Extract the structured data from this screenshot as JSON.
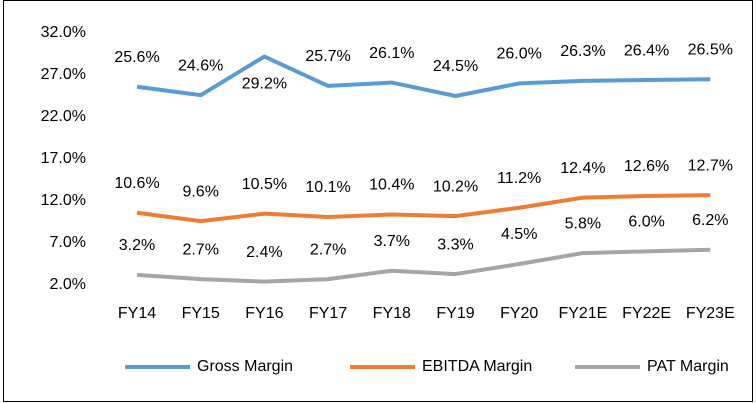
{
  "chart_data": {
    "type": "line",
    "categories": [
      "FY14",
      "FY15",
      "FY16",
      "FY17",
      "FY18",
      "FY19",
      "FY20",
      "FY21E",
      "FY22E",
      "FY23E"
    ],
    "series": [
      {
        "name": "Gross Margin",
        "color": "#5b9bd5",
        "values": [
          25.6,
          24.6,
          29.2,
          25.7,
          26.1,
          24.5,
          26.0,
          26.3,
          26.4,
          26.5
        ],
        "value_labels": [
          "25.6%",
          "24.6%",
          "29.2%",
          "25.7%",
          "26.1%",
          "24.5%",
          "26.0%",
          "26.3%",
          "26.4%",
          "26.5%"
        ]
      },
      {
        "name": "EBITDA Margin",
        "color": "#ed7d31",
        "values": [
          10.6,
          9.6,
          10.5,
          10.1,
          10.4,
          10.2,
          11.2,
          12.4,
          12.6,
          12.7
        ],
        "value_labels": [
          "10.6%",
          "9.6%",
          "10.5%",
          "10.1%",
          "10.4%",
          "10.2%",
          "11.2%",
          "12.4%",
          "12.6%",
          "12.7%"
        ]
      },
      {
        "name": "PAT Margin",
        "color": "#a5a5a5",
        "values": [
          3.2,
          2.7,
          2.4,
          2.7,
          3.7,
          3.3,
          4.5,
          5.8,
          6.0,
          6.2
        ],
        "value_labels": [
          "3.2%",
          "2.7%",
          "2.4%",
          "2.7%",
          "3.7%",
          "3.3%",
          "4.5%",
          "5.8%",
          "6.0%",
          "6.2%"
        ]
      }
    ],
    "ylim": [
      2,
      32
    ],
    "yticks": [
      {
        "value": 2,
        "label": "2.0%"
      },
      {
        "value": 7,
        "label": "7.0%"
      },
      {
        "value": 12,
        "label": "12.0%"
      },
      {
        "value": 17,
        "label": "17.0%"
      },
      {
        "value": 22,
        "label": "22.0%"
      },
      {
        "value": 27,
        "label": "27.0%"
      },
      {
        "value": 32,
        "label": "32.0%"
      }
    ],
    "legend": "bottom"
  }
}
